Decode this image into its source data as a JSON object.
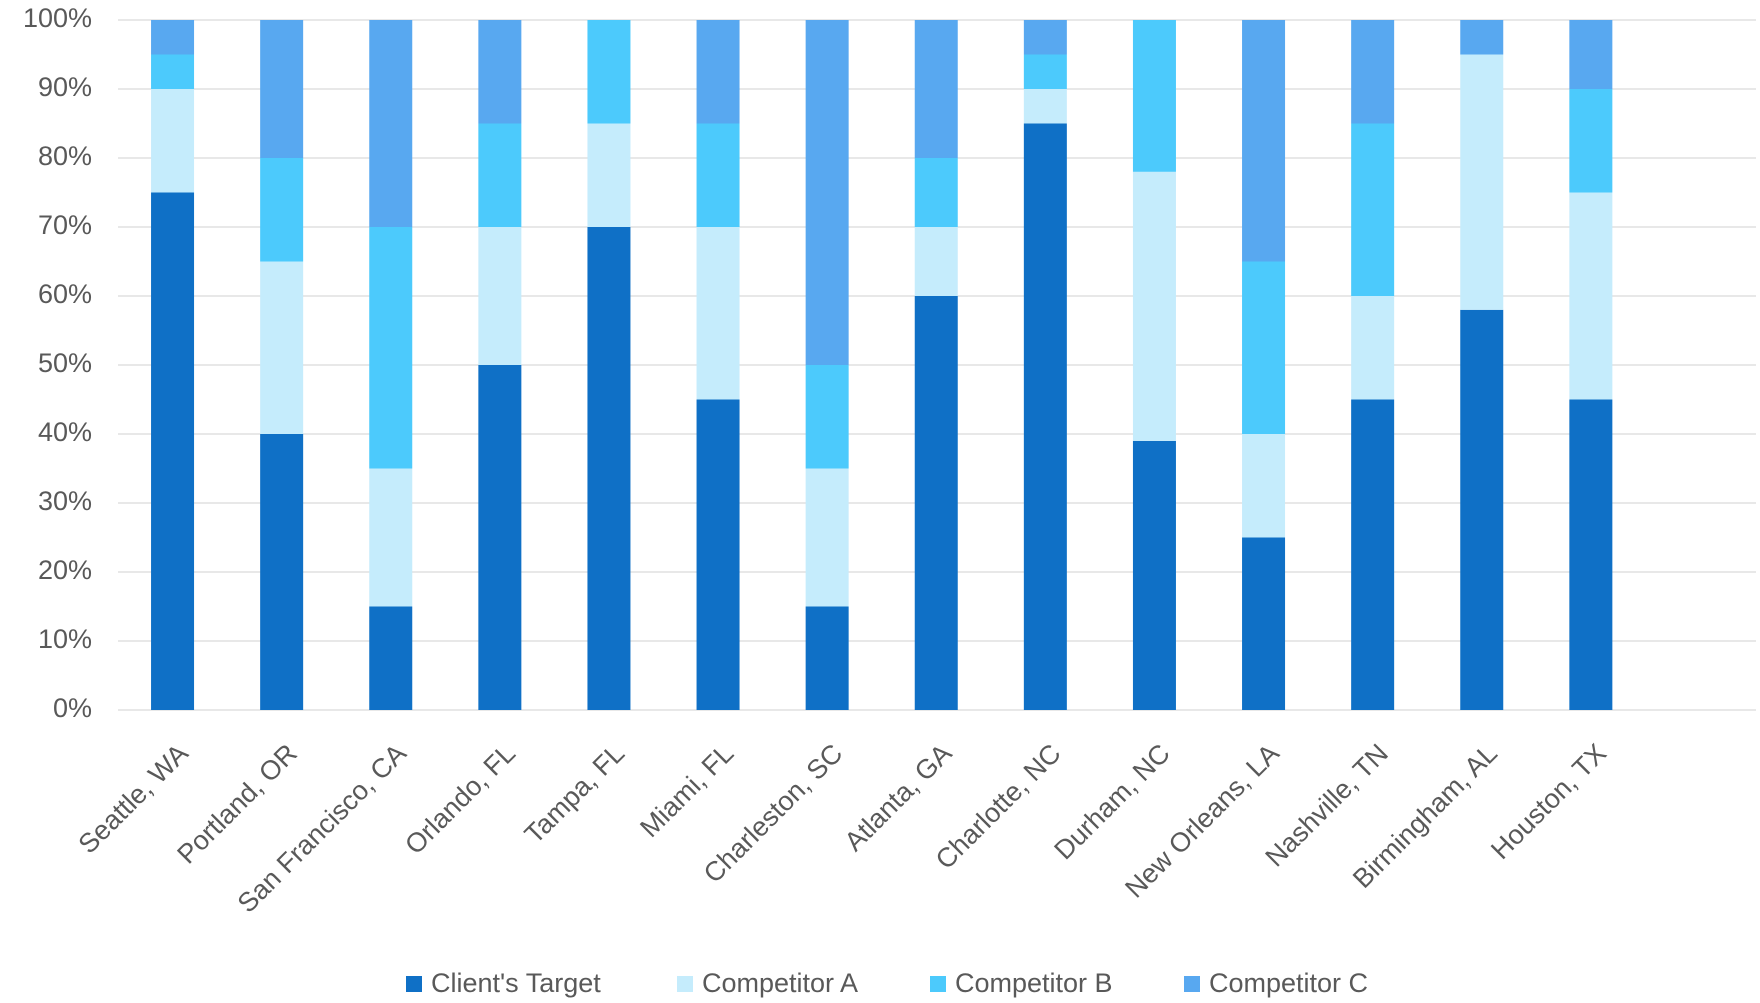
{
  "chart_data": {
    "type": "stacked_bar",
    "categories": [
      "Seattle, WA",
      "Portland, OR",
      "San Francisco, CA",
      "Orlando, FL",
      "Tampa, FL",
      "Miami, FL",
      "Charleston, SC",
      "Atlanta, GA",
      "Charlotte, NC",
      "Durham, NC",
      "New Orleans, LA",
      "Nashville, TN",
      "Birmingham, AL",
      "Houston, TX"
    ],
    "series": [
      {
        "name": "Client's Target",
        "color": "#0f70c6",
        "values": [
          75,
          40,
          15,
          50,
          70,
          45,
          15,
          60,
          85,
          39,
          25,
          45,
          58,
          45
        ]
      },
      {
        "name": "Competitor A",
        "color": "#c5ecfc",
        "values": [
          15,
          25,
          20,
          20,
          15,
          25,
          20,
          10,
          5,
          39,
          15,
          15,
          37,
          30
        ]
      },
      {
        "name": "Competitor B",
        "color": "#4ccafc",
        "values": [
          5,
          15,
          35,
          15,
          15,
          15,
          15,
          10,
          5,
          22,
          25,
          25,
          0,
          15
        ]
      },
      {
        "name": "Competitor C",
        "color": "#58a8f0",
        "values": [
          5,
          20,
          30,
          15,
          0,
          15,
          50,
          20,
          5,
          0,
          35,
          15,
          5,
          10
        ]
      }
    ],
    "ylim": [
      0,
      100
    ],
    "yticks": [
      {
        "value": 0,
        "label": "0%"
      },
      {
        "value": 10,
        "label": "10%"
      },
      {
        "value": 20,
        "label": "20%"
      },
      {
        "value": 30,
        "label": "30%"
      },
      {
        "value": 40,
        "label": "40%"
      },
      {
        "value": 50,
        "label": "50%"
      },
      {
        "value": 60,
        "label": "60%"
      },
      {
        "value": 70,
        "label": "70%"
      },
      {
        "value": 80,
        "label": "80%"
      },
      {
        "value": 90,
        "label": "90%"
      },
      {
        "value": 100,
        "label": "100%"
      }
    ],
    "grid": true,
    "legend": "bottom"
  }
}
